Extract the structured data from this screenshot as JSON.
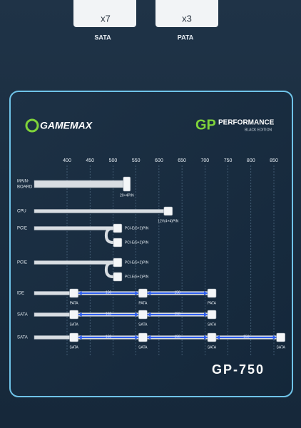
{
  "top": {
    "items": [
      {
        "count": "x7",
        "label": "SATA"
      },
      {
        "count": "x3",
        "label": "PATA"
      }
    ]
  },
  "brand": {
    "logo": "GAMEMAX",
    "series": "GP",
    "line1": "PERFORMANCE",
    "line2": "BLACK EDITION"
  },
  "scale": {
    "ticks": [
      400,
      450,
      500,
      550,
      600,
      650,
      700,
      750,
      800,
      850
    ]
  },
  "cables": [
    {
      "label_lines": [
        "MAIN-",
        "BOARD"
      ],
      "connectors": [
        {
          "length": 530,
          "label": "20+4PIN"
        }
      ]
    },
    {
      "label": "CPU",
      "connectors": [
        {
          "length": 620,
          "label": "12V(4+4)PIN"
        }
      ]
    },
    {
      "label": "PCIE",
      "connectors": [
        {
          "length": 510,
          "label": "PCI-E(6+2)PIN"
        },
        {
          "length": 510,
          "label": "PCI-E(6+2)PIN"
        }
      ]
    },
    {
      "label": "PCIE",
      "connectors": [
        {
          "length": 510,
          "label": "PCI-E(6+2)PIN"
        },
        {
          "length": 510,
          "label": "PCI-E(6+2)PIN"
        }
      ]
    },
    {
      "label": "IDE",
      "connectors": [
        {
          "length": 415,
          "label": "PATA"
        },
        {
          "length": 565,
          "label": "PATA"
        },
        {
          "length": 715,
          "label": "PATA"
        }
      ],
      "spans": [
        "150",
        "150"
      ]
    },
    {
      "label": "SATA",
      "connectors": [
        {
          "length": 415,
          "label": "SATA"
        },
        {
          "length": 565,
          "label": "SATA"
        },
        {
          "length": 715,
          "label": "SATA"
        }
      ],
      "spans": [
        "150",
        "150"
      ]
    },
    {
      "label": "SATA",
      "connectors": [
        {
          "length": 415,
          "label": "SATA"
        },
        {
          "length": 565,
          "label": "SATA"
        },
        {
          "length": 715,
          "label": "SATA"
        },
        {
          "length": 865,
          "label": "SATA"
        }
      ],
      "spans": [
        "150",
        "150",
        "150"
      ]
    }
  ],
  "model": "GP-750"
}
